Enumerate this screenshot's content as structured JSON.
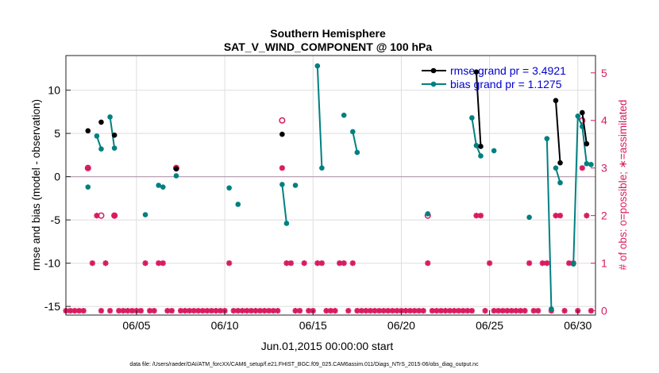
{
  "chart_data": {
    "type": "line",
    "title": "Southern Hemisphere",
    "subtitle": "SAT_V_WIND_COMPONENT @ 100 hPa",
    "xlabel": "Jun.01,2015 00:00:00 start",
    "ylabel_left": "rmse and bias (model - observation)",
    "ylabel_right": "# of obs: o=possible; ∗=assimilated",
    "xlim": [
      1,
      31
    ],
    "ylim_left": [
      -16,
      14
    ],
    "ylim_right": [
      -0.0909,
      5.3636
    ],
    "x_ticks": [
      5,
      10,
      15,
      20,
      25,
      30
    ],
    "x_tick_labels": [
      "06/05",
      "06/10",
      "06/15",
      "06/20",
      "06/25",
      "06/30"
    ],
    "y_ticks_left": [
      -15,
      -10,
      -5,
      0,
      5,
      10
    ],
    "y_tick_labels_left": [
      "-15",
      "-10",
      "-5",
      "0",
      "5",
      "10"
    ],
    "y_ticks_right": [
      0,
      1,
      2,
      3,
      4,
      5
    ],
    "y_tick_labels_right": [
      "0",
      "1",
      "2",
      "3",
      "4",
      "5"
    ],
    "grid": true,
    "legend": [
      "rmse grand pr = 3.4921",
      "bias grand pr = 1.1275"
    ],
    "footer": "data file: /Users/raeder/DAI/ATM_forcXX/CAM6_setup/f.e21.FHIST_BGC.f09_025.CAM6assim.011/Diags_NTrS_2015-06/obs_diag_output.nc",
    "colors": {
      "rmse": "#000000",
      "bias": "#008080",
      "obs": "#d81b60",
      "zero": "#b8a2b5",
      "grid": "#dedede"
    },
    "series": [
      {
        "name": "rmse",
        "axis": "left",
        "segments": [
          [
            [
              2.25,
              5.3
            ]
          ],
          [
            [
              3.0,
              6.3
            ]
          ],
          [
            [
              3.75,
              4.8
            ]
          ],
          [
            [
              7.25,
              0.9
            ]
          ],
          [
            [
              13.25,
              4.9
            ]
          ],
          [
            [
              24.25,
              12.1
            ],
            [
              24.5,
              3.5
            ]
          ],
          [
            [
              28.75,
              8.8
            ],
            [
              29.0,
              1.6
            ]
          ],
          [
            [
              30.25,
              7.4
            ],
            [
              30.5,
              3.8
            ]
          ]
        ]
      },
      {
        "name": "bias",
        "axis": "left",
        "segments": [
          [
            [
              2.25,
              -1.2
            ]
          ],
          [
            [
              2.75,
              4.7
            ],
            [
              3.0,
              3.2
            ]
          ],
          [
            [
              3.5,
              6.9
            ],
            [
              3.75,
              3.3
            ]
          ],
          [
            [
              5.5,
              -4.4
            ]
          ],
          [
            [
              6.25,
              -1.0
            ],
            [
              6.5,
              -1.2
            ]
          ],
          [
            [
              7.25,
              0.1
            ]
          ],
          [
            [
              10.25,
              -1.3
            ]
          ],
          [
            [
              10.75,
              -3.2
            ]
          ],
          [
            [
              13.25,
              -0.9
            ],
            [
              13.5,
              -5.4
            ]
          ],
          [
            [
              14.0,
              -1.0
            ]
          ],
          [
            [
              15.25,
              12.8
            ],
            [
              15.5,
              1.0
            ]
          ],
          [
            [
              16.75,
              7.1
            ]
          ],
          [
            [
              17.25,
              5.2
            ],
            [
              17.5,
              2.8
            ]
          ],
          [
            [
              21.5,
              -4.3
            ]
          ],
          [
            [
              24.0,
              6.8
            ],
            [
              24.25,
              3.6
            ],
            [
              24.5,
              2.4
            ]
          ],
          [
            [
              25.25,
              3.0
            ]
          ],
          [
            [
              27.25,
              -4.7
            ]
          ],
          [
            [
              28.25,
              4.4
            ],
            [
              28.5,
              -15.3
            ]
          ],
          [
            [
              28.75,
              1.0
            ],
            [
              29.0,
              -0.7
            ]
          ],
          [
            [
              29.75,
              -10.1
            ],
            [
              30.0,
              7.0
            ],
            [
              30.25,
              5.8
            ],
            [
              30.5,
              1.5
            ],
            [
              30.75,
              1.4
            ]
          ]
        ]
      },
      {
        "name": "obs_possible",
        "axis": "right",
        "marker": "o",
        "x": [
          2.25,
          3.0,
          3.75,
          7.25,
          13.25,
          21.5,
          30.25
        ],
        "values": [
          3,
          2,
          2,
          3,
          4,
          2,
          4
        ]
      },
      {
        "name": "obs_assimilated",
        "axis": "right",
        "marker": "*",
        "x": [
          1,
          1.25,
          1.5,
          1.75,
          2.0,
          2.25,
          2.5,
          2.75,
          3.0,
          3.25,
          3.5,
          3.75,
          4.0,
          4.25,
          4.5,
          4.75,
          5.0,
          5.25,
          5.5,
          5.75,
          6.0,
          6.25,
          6.5,
          6.75,
          7.0,
          7.25,
          7.5,
          7.75,
          8.0,
          8.25,
          8.5,
          8.75,
          9.0,
          9.25,
          9.5,
          9.75,
          10.0,
          10.25,
          10.5,
          10.75,
          11.0,
          11.25,
          11.5,
          11.75,
          12.0,
          12.25,
          12.5,
          12.75,
          13.0,
          13.25,
          13.5,
          13.75,
          14.0,
          14.25,
          14.5,
          14.75,
          15.0,
          15.25,
          15.5,
          15.75,
          16.0,
          16.25,
          16.5,
          16.75,
          17.0,
          17.25,
          17.5,
          17.75,
          18.0,
          18.25,
          18.5,
          18.75,
          19.0,
          19.25,
          19.5,
          19.75,
          20.0,
          20.25,
          20.5,
          20.75,
          21.0,
          21.25,
          21.5,
          21.75,
          22.0,
          22.25,
          22.5,
          22.75,
          23.0,
          23.25,
          23.5,
          23.75,
          24.0,
          24.25,
          24.5,
          24.75,
          25.0,
          25.25,
          25.5,
          25.75,
          26.0,
          26.25,
          26.5,
          26.75,
          27.0,
          27.25,
          27.5,
          27.75,
          28.0,
          28.25,
          28.5,
          28.75,
          29.0,
          29.25,
          29.5,
          29.75,
          30.0,
          30.25,
          30.5,
          30.75
        ],
        "values": [
          0,
          0,
          0,
          0,
          0,
          3,
          1,
          2,
          0,
          1,
          0,
          2,
          0,
          0,
          0,
          0,
          0,
          0,
          1,
          0,
          0,
          1,
          1,
          0,
          0,
          3,
          0,
          0,
          0,
          0,
          0,
          0,
          0,
          0,
          0,
          0,
          0,
          1,
          0,
          0,
          0,
          0,
          0,
          0,
          0,
          0,
          0,
          0,
          0,
          3,
          1,
          1,
          0,
          0,
          1,
          0,
          0,
          1,
          1,
          0,
          0,
          0,
          1,
          1,
          0,
          1,
          0,
          0,
          0,
          0,
          0,
          0,
          0,
          0,
          0,
          0,
          0,
          0,
          0,
          0,
          0,
          0,
          1,
          0,
          0,
          0,
          0,
          0,
          0,
          0,
          0,
          0,
          0,
          2,
          2,
          0,
          1,
          0,
          0,
          0,
          0,
          0,
          0,
          0,
          0,
          1,
          0,
          0,
          1,
          1,
          0,
          2,
          2,
          0,
          1,
          1,
          0,
          3,
          2,
          0
        ]
      }
    ]
  }
}
